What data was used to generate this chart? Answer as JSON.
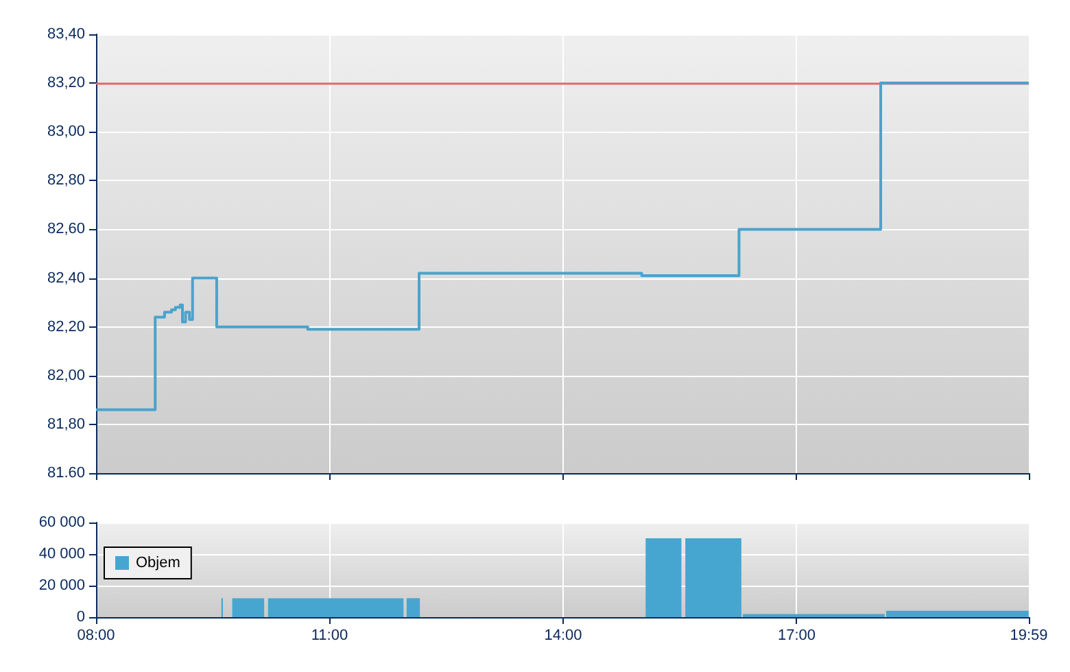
{
  "chart_data": [
    {
      "type": "step",
      "x": [
        8,
        8.76,
        8.88,
        8.97,
        9.02,
        9.08,
        9.11,
        9.15,
        9.2,
        9.24,
        9.55,
        10.72,
        12.15,
        15.01,
        16.26,
        18.08,
        19.98
      ],
      "series": [
        {
          "color": "#4aa3cc",
          "values": [
            81.86,
            82.24,
            82.26,
            82.27,
            82.28,
            82.29,
            82.22,
            82.26,
            82.23,
            82.4,
            82.2,
            82.19,
            82.42,
            82.41,
            82.6,
            83.2,
            83.2
          ]
        }
      ],
      "xlim": [
        8,
        19.983
      ],
      "xticks": [
        {
          "value": 8,
          "label": null
        },
        {
          "value": 11,
          "label": null
        },
        {
          "value": 14,
          "label": null
        },
        {
          "value": 17,
          "label": null
        },
        {
          "value": 19.983,
          "label": null
        }
      ],
      "ylim": [
        81.6,
        83.4
      ],
      "yticks": [
        {
          "value": 81.6,
          "label": "81.60"
        },
        {
          "value": 81.8,
          "label": "81,80"
        },
        {
          "value": 82,
          "label": "82,00"
        },
        {
          "value": 82.2,
          "label": "82,20"
        },
        {
          "value": 82.4,
          "label": "82,40"
        },
        {
          "value": 82.6,
          "label": "82,60"
        },
        {
          "value": 82.8,
          "label": "82,80"
        },
        {
          "value": 83,
          "label": "83,00"
        },
        {
          "value": 83.2,
          "label": "83,20"
        },
        {
          "value": 83.4,
          "label": "83,40"
        }
      ],
      "ref_lines": [
        {
          "axis": "y",
          "value": 83.2,
          "color": "#e06666"
        }
      ],
      "grid": true,
      "tick_labels": "y",
      "legend": false
    },
    {
      "type": "histogram",
      "bins": [
        9.61,
        9.63,
        9.75,
        10.16,
        10.21,
        11.95,
        11.99,
        12.16,
        15.06,
        15.52,
        15.57,
        16.29,
        16.31,
        18.13,
        18.15,
        19.98
      ],
      "series": [
        {
          "name": "Objem",
          "color": "#46a6d0",
          "values": [
            12000,
            0,
            12000,
            0,
            12000,
            0,
            12000,
            0,
            50000,
            0,
            50000,
            0,
            2000,
            0,
            4000
          ]
        }
      ],
      "xlim": [
        8,
        19.983
      ],
      "xticks": [
        {
          "value": 8,
          "label": "08:00"
        },
        {
          "value": 11,
          "label": "11:00"
        },
        {
          "value": 14,
          "label": "14:00"
        },
        {
          "value": 17,
          "label": "17:00"
        },
        {
          "value": 19.983,
          "label": "19:59"
        }
      ],
      "ylim": [
        0,
        60000
      ],
      "yticks": [
        0,
        {
          "value": 20000,
          "label": "20 000"
        },
        {
          "value": 40000,
          "label": "40 000"
        },
        {
          "value": 60000,
          "label": "60 000"
        }
      ],
      "grid": true,
      "legend": "top left"
    }
  ]
}
